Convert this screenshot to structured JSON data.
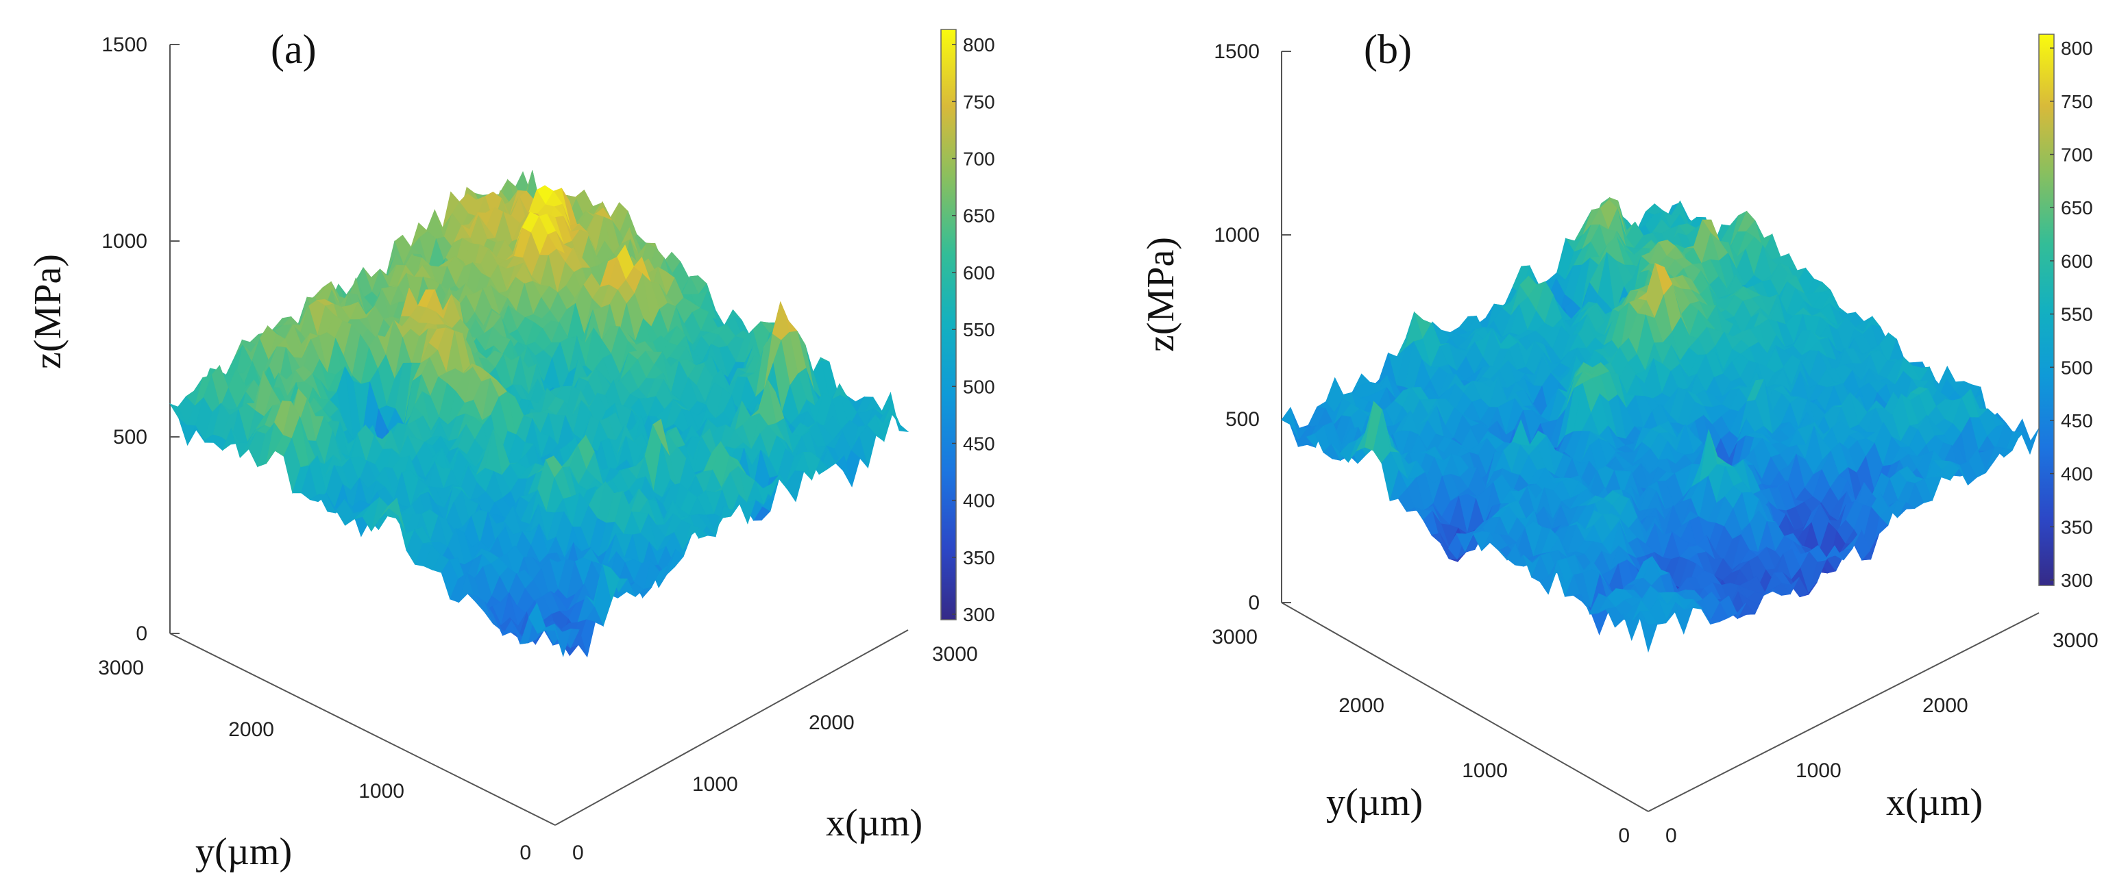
{
  "chart_data": [
    {
      "type": "surface3d",
      "panel_label": "(a)",
      "xlabel": "x(µm)",
      "ylabel": "y(µm)",
      "zlabel": "z(MPa)",
      "xlim": [
        0,
        3000
      ],
      "ylim": [
        0,
        3000
      ],
      "zlim": [
        0,
        1500
      ],
      "x_ticks": [
        "0",
        "1000",
        "2000",
        "3000"
      ],
      "y_ticks": [
        "0",
        "1000",
        "2000",
        "3000"
      ],
      "z_ticks": [
        "0",
        "500",
        "1000",
        "1500"
      ],
      "colorbar": {
        "range": [
          300,
          800
        ],
        "ticks": [
          "300",
          "350",
          "400",
          "450",
          "500",
          "550",
          "600",
          "650",
          "700",
          "750",
          "800"
        ]
      },
      "value_range": [
        300,
        800
      ],
      "description_values": {
        "mean_stress": 600
      }
    },
    {
      "type": "surface3d",
      "panel_label": "(b)",
      "xlabel": "x(µm)",
      "ylabel": "y(µm)",
      "zlabel": "z(MPa)",
      "xlim": [
        0,
        3000
      ],
      "ylim": [
        0,
        3000
      ],
      "zlim": [
        0,
        1500
      ],
      "x_ticks": [
        "0",
        "1000",
        "2000",
        "3000"
      ],
      "y_ticks": [
        "0",
        "1000",
        "2000",
        "3000"
      ],
      "z_ticks": [
        "0",
        "500",
        "1000",
        "1500"
      ],
      "colorbar": {
        "range": [
          300,
          800
        ],
        "ticks": [
          "300",
          "350",
          "400",
          "450",
          "500",
          "550",
          "600",
          "650",
          "700",
          "750",
          "800"
        ]
      },
      "value_range": [
        300,
        800
      ],
      "description_values": {
        "mean_stress": 520
      }
    }
  ]
}
